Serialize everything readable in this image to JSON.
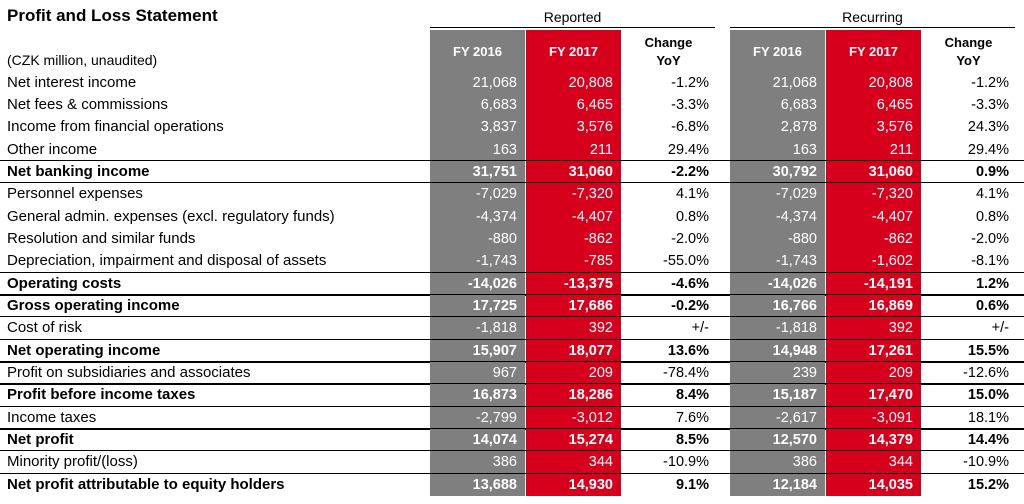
{
  "title": "Profit and Loss Statement",
  "unit_note": "(CZK million, unaudited)",
  "groups": {
    "reported": "Reported",
    "recurring": "Recurring"
  },
  "headers": {
    "fy2016": "FY 2016",
    "fy2017": "FY 2017",
    "change_line1": "Change",
    "change_line2": "YoY"
  },
  "rows": [
    {
      "label": "Net interest income",
      "bold": false,
      "rep": [
        "21,068",
        "20,808",
        "-1.2%"
      ],
      "rec": [
        "21,068",
        "20,808",
        "-1.2%"
      ]
    },
    {
      "label": "Net fees & commissions",
      "bold": false,
      "rep": [
        "6,683",
        "6,465",
        "-3.3%"
      ],
      "rec": [
        "6,683",
        "6,465",
        "-3.3%"
      ]
    },
    {
      "label": "Income from financial operations",
      "bold": false,
      "rep": [
        "3,837",
        "3,576",
        "-6.8%"
      ],
      "rec": [
        "2,878",
        "3,576",
        "24.3%"
      ]
    },
    {
      "label": "Other income",
      "bold": false,
      "rep": [
        "163",
        "211",
        "29.4%"
      ],
      "rec": [
        "163",
        "211",
        "29.4%"
      ]
    },
    {
      "label": "Net banking income",
      "bold": true,
      "rep": [
        "31,751",
        "31,060",
        "-2.2%"
      ],
      "rec": [
        "30,792",
        "31,060",
        "0.9%"
      ]
    },
    {
      "label": "Personnel expenses",
      "bold": false,
      "rep": [
        "-7,029",
        "-7,320",
        "4.1%"
      ],
      "rec": [
        "-7,029",
        "-7,320",
        "4.1%"
      ]
    },
    {
      "label": "General admin. expenses (excl. regulatory funds)",
      "bold": false,
      "rep": [
        "-4,374",
        "-4,407",
        "0.8%"
      ],
      "rec": [
        "-4,374",
        "-4,407",
        "0.8%"
      ]
    },
    {
      "label": "Resolution and similar funds",
      "bold": false,
      "rep": [
        "-880",
        "-862",
        "-2.0%"
      ],
      "rec": [
        "-880",
        "-862",
        "-2.0%"
      ]
    },
    {
      "label": "Depreciation, impairment and disposal of assets",
      "bold": false,
      "rep": [
        "-1,743",
        "-785",
        "-55.0%"
      ],
      "rec": [
        "-1,743",
        "-1,602",
        "-8.1%"
      ]
    },
    {
      "label": "Operating costs",
      "bold": true,
      "rep": [
        "-14,026",
        "-13,375",
        "-4.6%"
      ],
      "rec": [
        "-14,026",
        "-14,191",
        "1.2%"
      ]
    },
    {
      "label": "Gross operating income",
      "bold": true,
      "rep": [
        "17,725",
        "17,686",
        "-0.2%"
      ],
      "rec": [
        "16,766",
        "16,869",
        "0.6%"
      ]
    },
    {
      "label": "Cost of risk",
      "bold": false,
      "rep": [
        "-1,818",
        "392",
        "+/-"
      ],
      "rec": [
        "-1,818",
        "392",
        "+/-"
      ]
    },
    {
      "label": "Net operating income",
      "bold": true,
      "rep": [
        "15,907",
        "18,077",
        "13.6%"
      ],
      "rec": [
        "14,948",
        "17,261",
        "15.5%"
      ]
    },
    {
      "label": "Profit on subsidiaries and associates",
      "bold": false,
      "rep": [
        "967",
        "209",
        "-78.4%"
      ],
      "rec": [
        "239",
        "209",
        "-12.6%"
      ]
    },
    {
      "label": "Profit before income taxes",
      "bold": true,
      "rep": [
        "16,873",
        "18,286",
        "8.4%"
      ],
      "rec": [
        "15,187",
        "17,470",
        "15.0%"
      ]
    },
    {
      "label": "Income taxes",
      "bold": false,
      "rep": [
        "-2,799",
        "-3,012",
        "7.6%"
      ],
      "rec": [
        "-2,617",
        "-3,091",
        "18.1%"
      ]
    },
    {
      "label": "Net profit",
      "bold": true,
      "rep": [
        "14,074",
        "15,274",
        "8.5%"
      ],
      "rec": [
        "12,570",
        "14,379",
        "14.4%"
      ]
    },
    {
      "label": "Minority profit/(loss)",
      "bold": false,
      "rep": [
        "386",
        "344",
        "-10.9%"
      ],
      "rec": [
        "386",
        "344",
        "-10.9%"
      ]
    },
    {
      "label": "Net profit attributable to equity holders",
      "bold": true,
      "rep": [
        "13,688",
        "14,930",
        "9.1%"
      ],
      "rec": [
        "12,184",
        "14,035",
        "15.2%"
      ]
    }
  ],
  "colors": {
    "fy2016_column": "#7f7f7f",
    "fy2017_column": "#d6001c"
  }
}
